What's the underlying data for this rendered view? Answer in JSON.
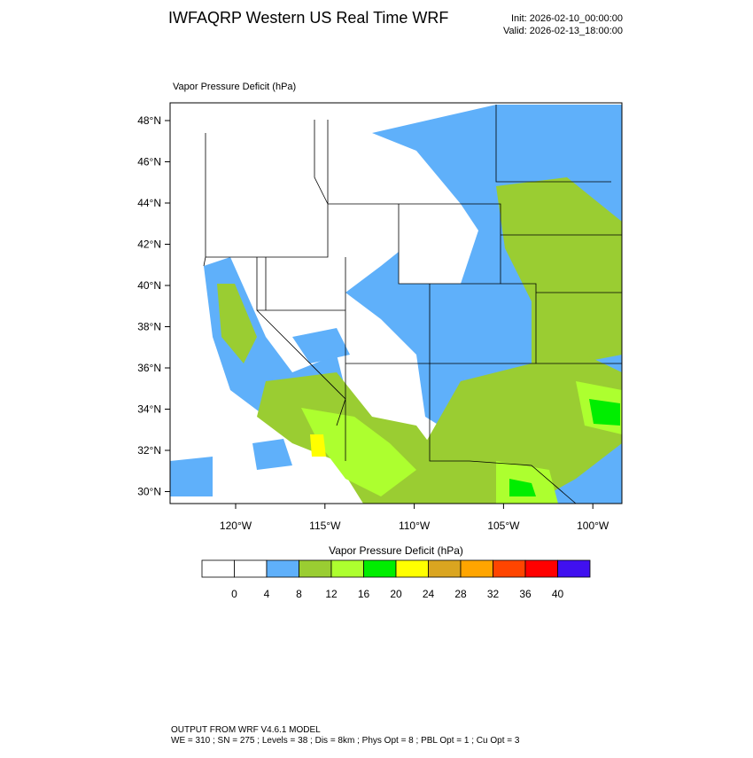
{
  "header": {
    "title": "IWFAQRP Western US Real Time WRF",
    "init": "Init: 2026-02-10_00:00:00",
    "valid": "Valid: 2026-02-13_18:00:00"
  },
  "map": {
    "field_label": "Vapor Pressure Deficit   (hPa)",
    "lat_labels": [
      "48°N",
      "46°N",
      "44°N",
      "42°N",
      "40°N",
      "38°N",
      "36°N",
      "34°N",
      "32°N",
      "30°N"
    ],
    "lon_labels": [
      "120°W",
      "115°W",
      "110°W",
      "105°W",
      "100°W"
    ]
  },
  "colorbar": {
    "title": "Vapor Pressure Deficit  (hPa)",
    "colors": [
      "#ffffff",
      "#ffffff",
      "#5fb0fa",
      "#9acd32",
      "#adff2f",
      "#00ee00",
      "#ffff00",
      "#daa520",
      "#ffa500",
      "#ff4500",
      "#ff0000",
      "#4010f0"
    ],
    "ticks": [
      0,
      4,
      8,
      12,
      16,
      20,
      24,
      28,
      32,
      36,
      40
    ]
  },
  "footer": {
    "line1": "OUTPUT FROM WRF V4.6.1 MODEL",
    "line2": "WE = 310 ; SN = 275 ; Levels = 38 ; Dis = 8km ; Phys Opt = 8 ; PBL Opt = 1 ; Cu Opt = 3"
  }
}
